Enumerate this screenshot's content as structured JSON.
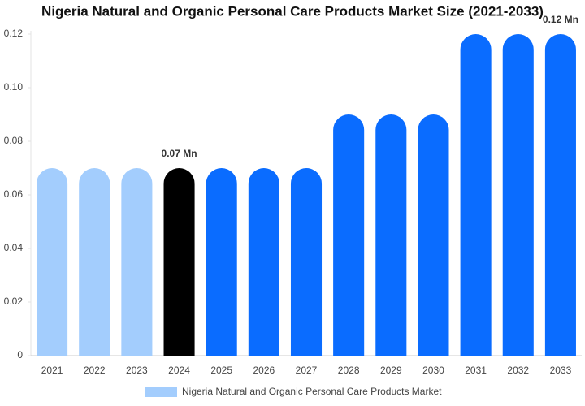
{
  "chart_data": {
    "type": "bar",
    "title": "Nigeria Natural and Organic Personal Care Products Market Size (2021-2033)",
    "categories": [
      "2021",
      "2022",
      "2023",
      "2024",
      "2025",
      "2026",
      "2027",
      "2028",
      "2029",
      "2030",
      "2031",
      "2032",
      "2033"
    ],
    "series": [
      {
        "name": "Nigeria Natural and Organic Personal Care Products Market",
        "color": "#a3cdfd",
        "values": [
          0.07,
          0.07,
          0.07,
          0.07,
          0.07,
          0.07,
          0.07,
          0.09,
          0.09,
          0.09,
          0.12,
          0.12,
          0.12
        ],
        "value_labels": [
          null,
          null,
          null,
          "0.07 Mn",
          null,
          null,
          null,
          null,
          null,
          null,
          null,
          null,
          "0.12 Mn"
        ],
        "colors": [
          "#a3cdfd",
          "#a3cdfd",
          "#a3cdfd",
          "#000000",
          "#0a6cff",
          "#0a6cff",
          "#0a6cff",
          "#0a6cff",
          "#0a6cff",
          "#0a6cff",
          "#0a6cff",
          "#0a6cff",
          "#0a6cff"
        ]
      }
    ],
    "ylim": [
      0,
      0.12
    ],
    "yticks": [
      0,
      0.02,
      0.04,
      0.06,
      0.08,
      {
        "value": 0.1,
        "label": "0.10"
      },
      0.12
    ]
  }
}
